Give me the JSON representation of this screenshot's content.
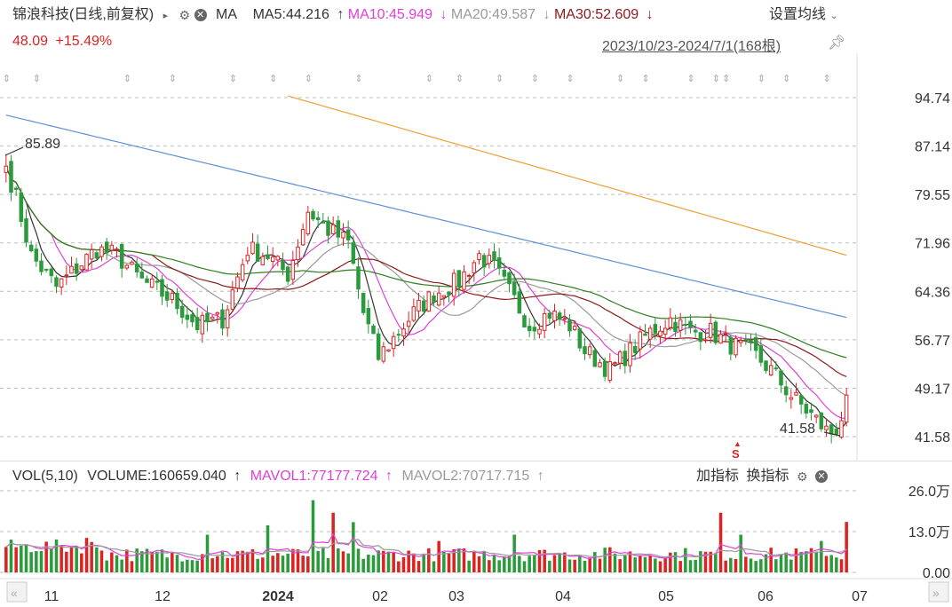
{
  "header": {
    "stock_name": "锦浪科技(日线,前复权)",
    "arrow": "▸",
    "indicator": "MA",
    "ma5_label": "MA5:44.216",
    "ma5_arrow": "↑",
    "ma10_label": "MA10:45.949",
    "ma10_arrow": "↓",
    "ma20_label": "MA20:49.587",
    "ma20_arrow": "↓",
    "ma30_label": "MA30:52.609",
    "ma30_arrow": "↓",
    "settings_label": "设置均线",
    "price": "48.09",
    "change": "+15.49%",
    "range": "2023/10/23-2024/7/1(168根)"
  },
  "volume_header": {
    "label": "VOL(5,10)",
    "volume": "VOLUME:160659.040",
    "volume_arrow": "↑",
    "mavol1": "MAVOL1:77177.724",
    "mavol1_arrow": "↑",
    "mavol2": "MAVOL2:70717.715",
    "mavol2_arrow": "↑",
    "add_indicator": "加指标",
    "switch_indicator": "换指标"
  },
  "annotations": {
    "high": "85.89",
    "low": "41.58",
    "signal": "S"
  },
  "colors": {
    "up": "#dd2222",
    "down": "#2a9a3c",
    "ma5": "#333333",
    "ma10": "#e040d8",
    "ma20": "#9a9a9a",
    "ma30": "#8b1a1a",
    "ma60": "#2e7d1e",
    "ma120": "#5b8ed6",
    "ma250": "#f0a030"
  },
  "chart_data": [
    {
      "type": "candlestick",
      "title": "",
      "y_ticks": [
        "94.74",
        "87.14",
        "79.55",
        "71.96",
        "64.36",
        "56.77",
        "49.17",
        "41.58"
      ],
      "y_tick_values": [
        94.74,
        87.14,
        79.55,
        71.96,
        64.36,
        56.77,
        49.17,
        41.58
      ],
      "ylim": [
        41.58,
        94.74
      ],
      "x_ticks": [
        "11",
        "12",
        "2024",
        "02",
        "03",
        "04",
        "05",
        "06",
        "07"
      ],
      "x_range": "2023/10/23-2024/7/1",
      "count": 168,
      "high": 85.89,
      "low": 41.58,
      "last_close": 48.09,
      "change_pct": "+15.49%",
      "close_anchors": [
        [
          0,
          84
        ],
        [
          2,
          79
        ],
        [
          5,
          70
        ],
        [
          10,
          65
        ],
        [
          14,
          68
        ],
        [
          18,
          71
        ],
        [
          22,
          70
        ],
        [
          27,
          66
        ],
        [
          33,
          63
        ],
        [
          38,
          59
        ],
        [
          43,
          60
        ],
        [
          48,
          71
        ],
        [
          52,
          70
        ],
        [
          56,
          67
        ],
        [
          60,
          77
        ],
        [
          64,
          74
        ],
        [
          68,
          72
        ],
        [
          71,
          61
        ],
        [
          74,
          54
        ],
        [
          77,
          57
        ],
        [
          81,
          61
        ],
        [
          85,
          64
        ],
        [
          90,
          66
        ],
        [
          94,
          70
        ],
        [
          97,
          68
        ],
        [
          101,
          63
        ],
        [
          104,
          59
        ],
        [
          108,
          61
        ],
        [
          112,
          59
        ],
        [
          115,
          55
        ],
        [
          120,
          52
        ],
        [
          124,
          55
        ],
        [
          128,
          58
        ],
        [
          132,
          60
        ],
        [
          136,
          58
        ],
        [
          140,
          58
        ],
        [
          144,
          56
        ],
        [
          148,
          55
        ],
        [
          152,
          52
        ],
        [
          156,
          48
        ],
        [
          160,
          45
        ],
        [
          163,
          42.5
        ],
        [
          165,
          42
        ],
        [
          167,
          48.09
        ]
      ],
      "series": [
        {
          "name": "MA5",
          "value": 44.216
        },
        {
          "name": "MA10",
          "value": 45.949
        },
        {
          "name": "MA20",
          "value": 49.587
        },
        {
          "name": "MA30",
          "value": 52.609
        }
      ]
    },
    {
      "type": "bar",
      "title": "",
      "y_ticks": [
        "26.0万",
        "13.0万",
        "0.00"
      ],
      "y_tick_values": [
        260000,
        130000,
        0
      ],
      "ylim": [
        0,
        260000
      ],
      "last_volume": 160659.04,
      "series": [
        {
          "name": "MAVOL1",
          "value": 77177.724
        },
        {
          "name": "MAVOL2",
          "value": 70717.715
        }
      ]
    }
  ]
}
